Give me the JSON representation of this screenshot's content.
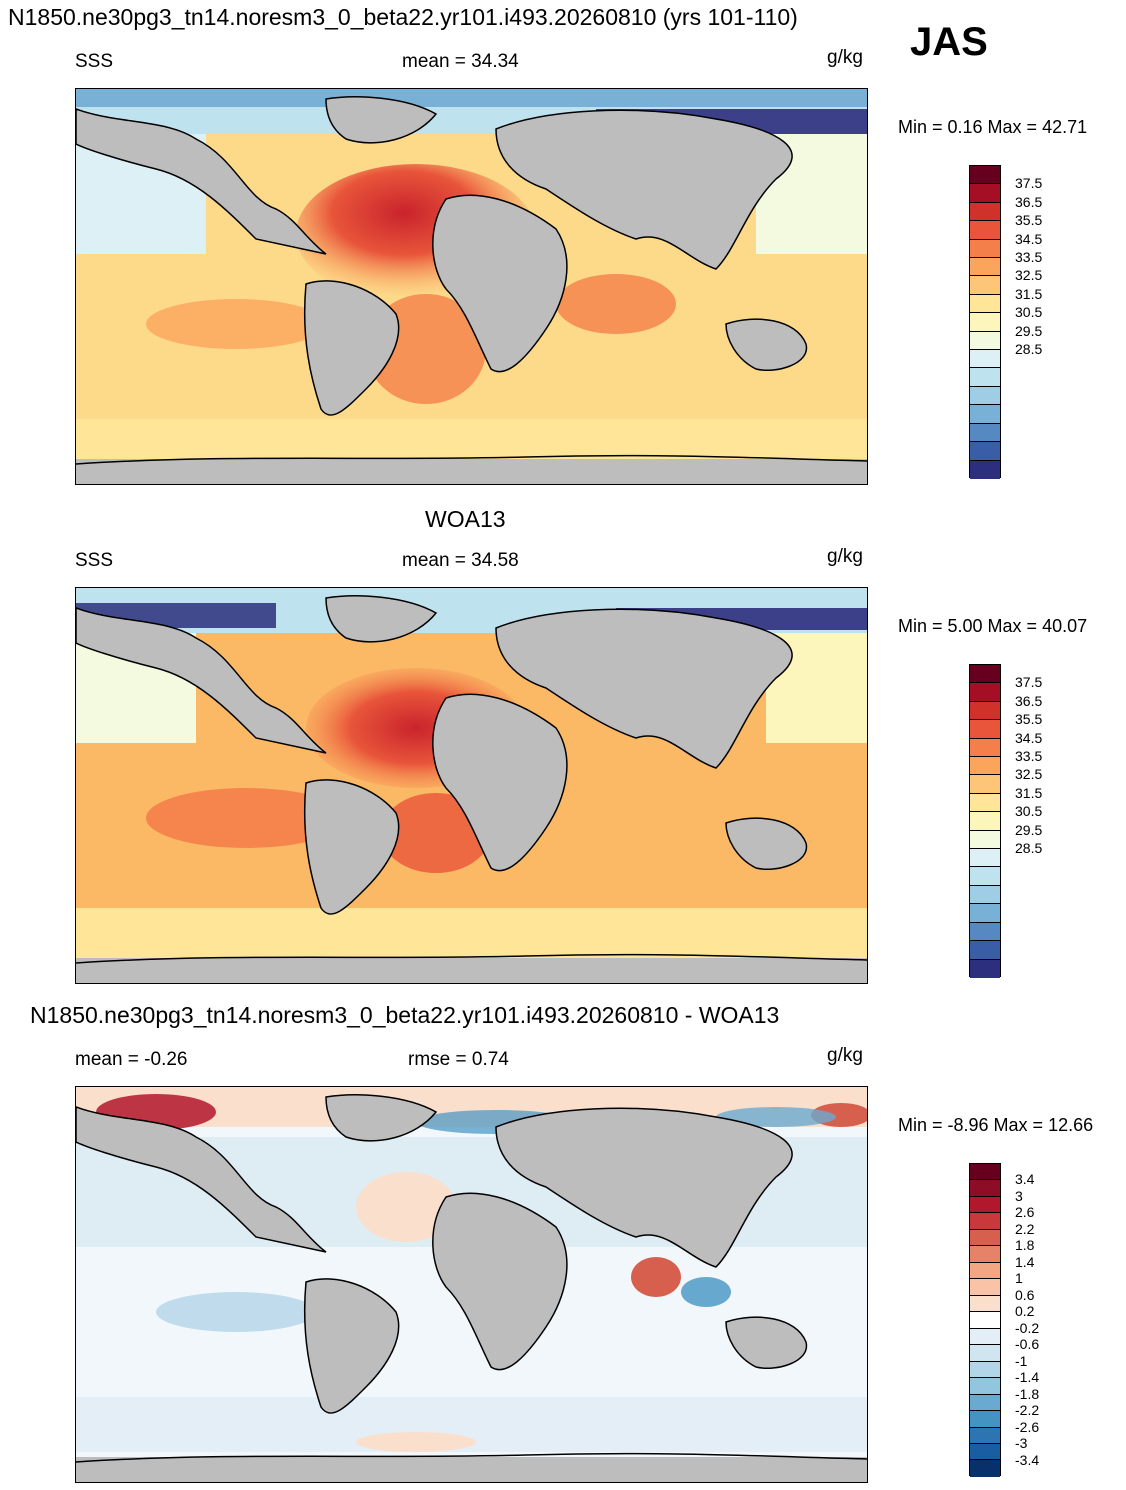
{
  "title": "N1850.ne30pg3_tn14.noresm3_0_beta22.yr101.i493.20260810 (yrs 101-110)",
  "season": "JAS",
  "panels": [
    {
      "id": "model",
      "heading": "",
      "left_label": "SSS",
      "center_label": "mean =  34.34",
      "units": "g/kg",
      "minmax": "Min =   0.16 Max =  42.71"
    },
    {
      "id": "obs",
      "heading": "WOA13",
      "left_label": "SSS",
      "center_label": "mean =  34.58",
      "units": "g/kg",
      "minmax": "Min =   5.00 Max =  40.07"
    },
    {
      "id": "diff",
      "heading": "N1850.ne30pg3_tn14.noresm3_0_beta22.yr101.i493.20260810 - WOA13",
      "left_label": "mean =  -0.26",
      "center_label": "rmse =   0.74",
      "units": "g/kg",
      "minmax": "Min =  -8.96 Max =  12.66"
    }
  ],
  "colorbars": {
    "sss": {
      "ticks": [
        "37.5",
        "36.5",
        "35.5",
        "34.5",
        "33.5",
        "32.5",
        "31.5",
        "30.5",
        "29.5",
        "28.5"
      ],
      "colors": [
        "#67001f",
        "#a50f25",
        "#d0312a",
        "#e8553a",
        "#f57f4a",
        "#fba55c",
        "#fdc577",
        "#fee597",
        "#fdf6bc",
        "#f4fae0",
        "#dcf0f5",
        "#bfe2ef",
        "#9fcde5",
        "#79b0d6",
        "#5688c2",
        "#3a5da8",
        "#2c2f7d"
      ]
    },
    "diff": {
      "ticks": [
        "3.4",
        "3",
        "2.6",
        "2.2",
        "1.8",
        "1.4",
        "1",
        "0.6",
        "0.2",
        "-0.2",
        "-0.6",
        "-1",
        "-1.4",
        "-1.8",
        "-2.2",
        "-2.6",
        "-3",
        "-3.4"
      ],
      "colors": [
        "#67001f",
        "#8e0d26",
        "#b2182b",
        "#c9393c",
        "#d6604d",
        "#e58268",
        "#f4a582",
        "#f8c3a7",
        "#fbdfcd",
        "#ffffff",
        "#e3eef6",
        "#d1e5f0",
        "#b3d5e8",
        "#92c5de",
        "#6aaad1",
        "#4393c3",
        "#2c74b2",
        "#195ea0",
        "#08306b"
      ]
    }
  }
}
